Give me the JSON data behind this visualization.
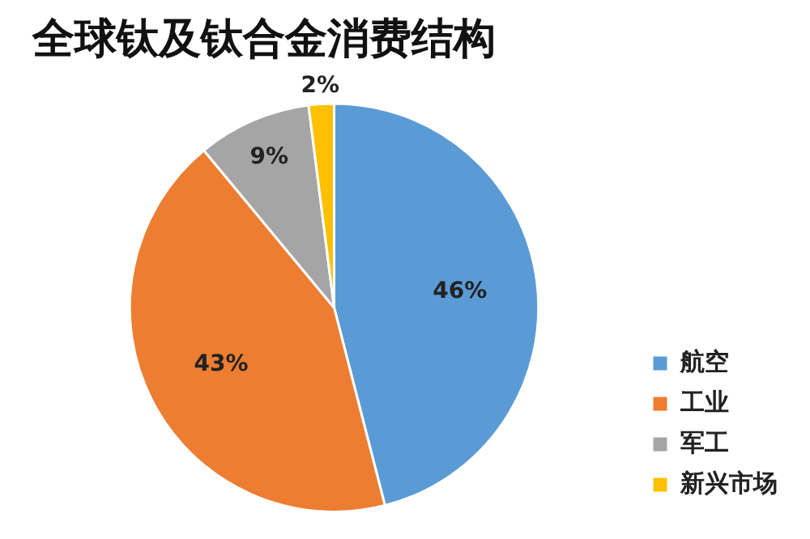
{
  "chart_data": {
    "type": "pie",
    "title": "全球钛及钛合金消费结构",
    "categories": [
      "航空",
      "工业",
      "军工",
      "新兴市场"
    ],
    "values": [
      46,
      43,
      9,
      2
    ],
    "value_labels": [
      "46%",
      "43%",
      "9%",
      "2%"
    ],
    "colors": [
      "#5b9bd5",
      "#ed7d31",
      "#a5a5a5",
      "#ffc000"
    ],
    "legend": "bottom right"
  }
}
